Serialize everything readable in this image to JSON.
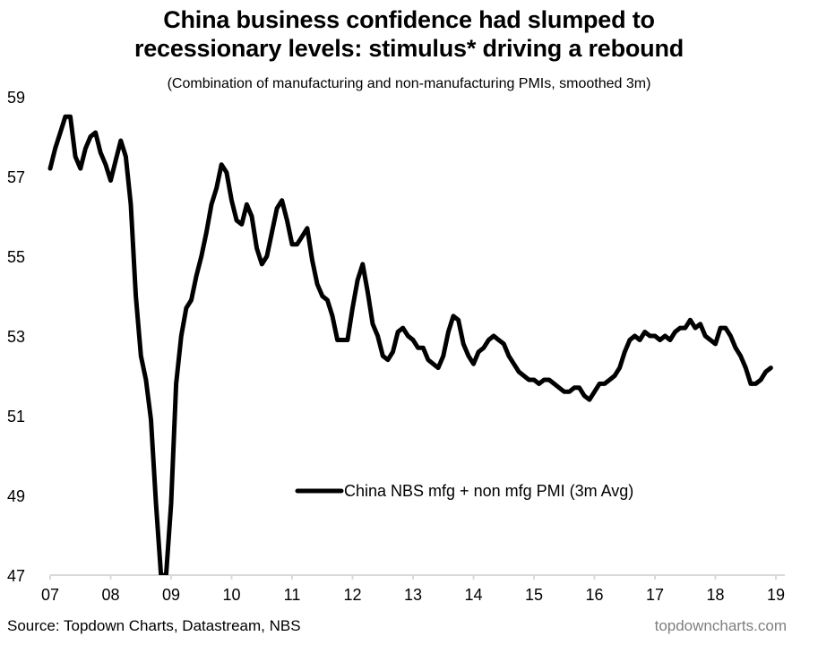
{
  "header": {
    "title_line1": "China business confidence had slumped to",
    "title_line2": "recessionary levels: stimulus* driving a rebound",
    "subtitle": "(Combination of manufacturing and non-manufacturing PMIs, smoothed 3m)"
  },
  "footer": {
    "source": "Source: Topdown Charts, Datastream, NBS",
    "brand": "topdowncharts.com"
  },
  "chart_data": {
    "type": "line",
    "title": "China business confidence had slumped to recessionary levels: stimulus* driving a rebound",
    "subtitle": "(Combination of manufacturing and non-manufacturing PMIs, smoothed 3m)",
    "xlabel": "",
    "ylabel": "",
    "x_start": "2007-01",
    "x_frequency": "monthly",
    "x_ticks": [
      "07",
      "08",
      "09",
      "10",
      "11",
      "12",
      "13",
      "14",
      "15",
      "16",
      "17",
      "18",
      "19"
    ],
    "y_ticks": [
      47,
      49,
      51,
      53,
      55,
      57,
      59
    ],
    "ylim": [
      47,
      59
    ],
    "xlim_years": [
      2007,
      2019.15
    ],
    "grid": false,
    "legend_position": "center-right",
    "line_color": "#000000",
    "axis_color": "#d9d9d9",
    "series": [
      {
        "name": "China NBS mfg + non mfg PMI (3m Avg)",
        "values": [
          57.2,
          57.7,
          58.1,
          58.5,
          58.5,
          57.5,
          57.2,
          57.7,
          58.0,
          58.1,
          57.6,
          57.3,
          56.9,
          57.4,
          57.9,
          57.5,
          56.3,
          54.0,
          52.5,
          51.9,
          50.9,
          48.8,
          47.0,
          47.0,
          48.8,
          51.8,
          53.0,
          53.7,
          53.9,
          54.5,
          55.0,
          55.6,
          56.3,
          56.7,
          57.3,
          57.1,
          56.4,
          55.9,
          55.8,
          56.3,
          56.0,
          55.2,
          54.8,
          55.0,
          55.6,
          56.2,
          56.4,
          55.9,
          55.3,
          55.3,
          55.5,
          55.7,
          54.9,
          54.3,
          54.0,
          53.9,
          53.5,
          52.9,
          52.9,
          52.9,
          53.7,
          54.4,
          54.8,
          54.1,
          53.3,
          53.0,
          52.5,
          52.4,
          52.6,
          53.1,
          53.2,
          53.0,
          52.9,
          52.7,
          52.7,
          52.4,
          52.3,
          52.2,
          52.5,
          53.1,
          53.5,
          53.4,
          52.8,
          52.5,
          52.3,
          52.6,
          52.7,
          52.9,
          53.0,
          52.9,
          52.8,
          52.5,
          52.3,
          52.1,
          52.0,
          51.9,
          51.9,
          51.8,
          51.9,
          51.9,
          51.8,
          51.7,
          51.6,
          51.6,
          51.7,
          51.7,
          51.5,
          51.4,
          51.6,
          51.8,
          51.8,
          51.9,
          52.0,
          52.2,
          52.6,
          52.9,
          53.0,
          52.9,
          53.1,
          53.0,
          53.0,
          52.9,
          53.0,
          52.9,
          53.1,
          53.2,
          53.2,
          53.4,
          53.2,
          53.3,
          53.0,
          52.9,
          52.8,
          53.2,
          53.2,
          53.0,
          52.7,
          52.5,
          52.2,
          51.8,
          51.8,
          51.9,
          52.1,
          52.2
        ]
      }
    ]
  }
}
